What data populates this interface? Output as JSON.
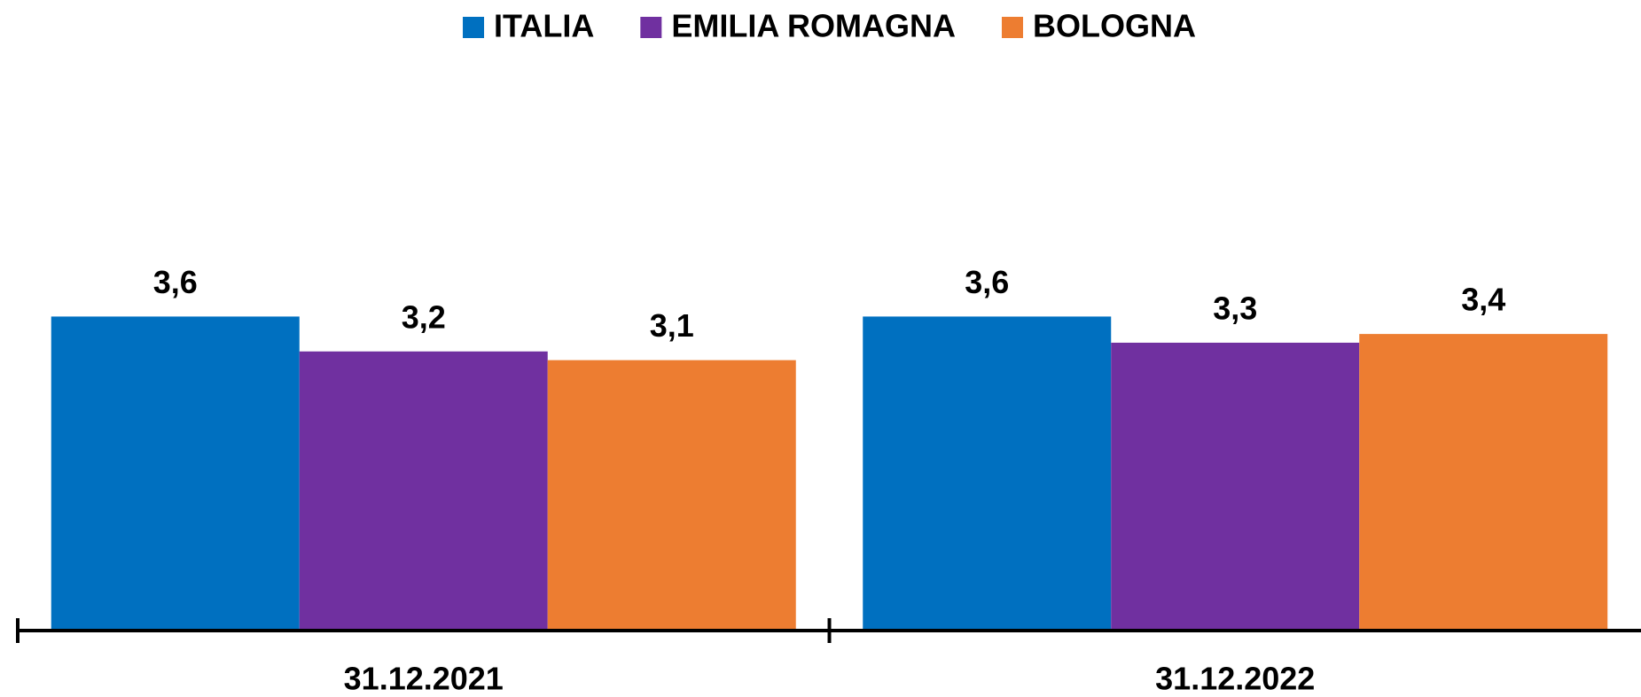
{
  "chart_data": {
    "type": "bar",
    "categories": [
      "31.12.2021",
      "31.12.2022"
    ],
    "series": [
      {
        "name": "ITALIA",
        "color": "#0070c0",
        "values": [
          3.6,
          3.6
        ],
        "value_labels": [
          "3,6",
          "3,6"
        ]
      },
      {
        "name": "EMILIA ROMAGNA",
        "color": "#7030a0",
        "values": [
          3.2,
          3.3
        ],
        "value_labels": [
          "3,2",
          "3,3"
        ]
      },
      {
        "name": "BOLOGNA",
        "color": "#ed7d31",
        "values": [
          3.1,
          3.4
        ],
        "value_labels": [
          "3,1",
          "3,4"
        ]
      }
    ],
    "ylim": [
      0,
      4
    ],
    "legend": "top"
  }
}
